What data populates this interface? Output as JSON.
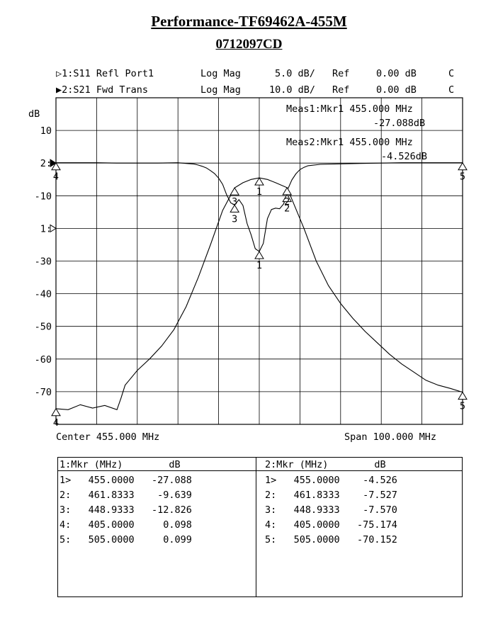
{
  "header": {
    "title": "Performance-TF69462A-455M",
    "subtitle": "0712097CD"
  },
  "channels": [
    {
      "prefix": "▷1:",
      "param": "S11 Refl Port1",
      "format": "Log Mag",
      "scale": "5.0 dB/",
      "ref_label": "Ref",
      "ref": "0.00 dB",
      "flag": "C"
    },
    {
      "prefix": "▶2:",
      "param": "S21 Fwd Trans",
      "format": "Log Mag",
      "scale": "10.0 dB/",
      "ref_label": "Ref",
      "ref": "0.00 dB",
      "flag": "C"
    }
  ],
  "measurements": [
    {
      "line1": "Meas1:Mkr1   455.000 MHz",
      "line2": "-27.088dB"
    },
    {
      "line1": "Meas2:Mkr1   455.000 MHz",
      "line2": "-4.526dB"
    }
  ],
  "footer": {
    "center": "Center 455.000 MHz",
    "span": "Span 100.000 MHz"
  },
  "chart_data": {
    "type": "line",
    "ylabel": "dB",
    "x_range": [
      405,
      505
    ],
    "y_range": [
      -80,
      20
    ],
    "grid": true,
    "y_ticks": [
      "10",
      "2:",
      "-10",
      "1:",
      "-30",
      "-40",
      "-50",
      "-60",
      "-70"
    ],
    "series": [
      {
        "name": "S11 Refl Port1",
        "x": [
          405,
          410,
          415,
          420,
          425,
          430,
          435,
          437,
          439,
          440,
          441,
          442,
          443,
          444,
          445,
          446,
          447,
          448,
          448.93,
          450,
          451,
          452,
          453,
          454,
          455,
          456,
          457,
          458,
          459,
          460,
          461,
          461.83,
          462,
          463,
          464,
          465,
          466,
          467,
          470,
          480,
          490,
          500,
          505
        ],
        "values": [
          0.1,
          0.1,
          0.1,
          0.0,
          0.0,
          0.0,
          0.1,
          -0.1,
          -0.3,
          -0.6,
          -1.0,
          -1.5,
          -2.3,
          -3.2,
          -4.6,
          -6.5,
          -9.8,
          -12.2,
          -12.83,
          -11.2,
          -13.0,
          -18.5,
          -22.0,
          -26.2,
          -27.09,
          -24.6,
          -17.0,
          -14.2,
          -13.8,
          -14.0,
          -12.5,
          -9.64,
          -8.0,
          -5.2,
          -3.3,
          -2.0,
          -1.3,
          -0.8,
          -0.4,
          -0.1,
          0.1,
          0.1,
          0.1
        ]
      },
      {
        "name": "S21 Fwd Trans",
        "x": [
          405,
          408,
          411,
          414,
          417,
          420,
          421,
          422,
          423,
          425,
          428,
          431,
          434,
          437,
          440,
          443,
          446,
          448.93,
          451,
          453,
          455,
          457,
          459,
          461.83,
          463,
          466,
          469,
          472,
          475,
          478,
          481,
          484,
          487,
          490,
          493,
          496,
          499,
          502,
          505
        ],
        "values": [
          -75.2,
          -75.5,
          -74.0,
          -75.0,
          -74.2,
          -75.5,
          -72.0,
          -68.0,
          -66.5,
          -63.5,
          -60.0,
          -56.0,
          -51.0,
          -44.0,
          -35.0,
          -25.0,
          -14.5,
          -7.57,
          -6.0,
          -5.0,
          -4.53,
          -5.0,
          -6.0,
          -7.53,
          -11.0,
          -20.0,
          -30.0,
          -37.5,
          -43.0,
          -47.5,
          -51.5,
          -55.0,
          -58.5,
          -61.5,
          -64.0,
          -66.5,
          -68.0,
          -69.0,
          -70.15
        ]
      }
    ]
  },
  "markers": {
    "table1": {
      "header": "1:Mkr (MHz)        dB",
      "rows": [
        "1>   455.0000   -27.088",
        "2:   461.8333    -9.639",
        "3:   448.9333   -12.826",
        "4:   405.0000     0.098",
        "5:   505.0000     0.099"
      ]
    },
    "table2": {
      "header": "2:Mkr (MHz)        dB",
      "rows": [
        "1>   455.0000    -4.526",
        "2:   461.8333    -7.527",
        "3:   448.9333    -7.570",
        "4:   405.0000   -75.174",
        "5:   505.0000   -70.152"
      ]
    }
  }
}
